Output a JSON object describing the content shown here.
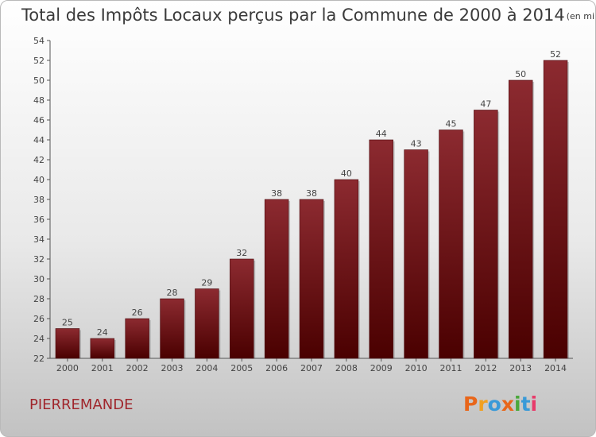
{
  "chart_data": {
    "type": "bar",
    "title": "Total des Impôts Locaux perçus par la Commune de 2000 à 2014",
    "subtitle": "(en milliers d'€)",
    "categories": [
      "2000",
      "2001",
      "2002",
      "2003",
      "2004",
      "2005",
      "2006",
      "2007",
      "2008",
      "2009",
      "2010",
      "2011",
      "2012",
      "2013",
      "2014"
    ],
    "values": [
      25,
      24,
      26,
      28,
      29,
      32,
      38,
      38,
      40,
      44,
      43,
      45,
      47,
      50,
      52
    ],
    "xlabel": "",
    "ylabel": "",
    "ylim": [
      22,
      54
    ],
    "yticks": [
      22,
      24,
      26,
      28,
      30,
      32,
      34,
      36,
      38,
      40,
      42,
      44,
      46,
      48,
      50,
      52,
      54
    ],
    "grid": false,
    "bar_color": "#7a1a20"
  },
  "footer": {
    "place": "PIERREMANDE",
    "logo": "Proxiti"
  },
  "logo_colors": [
    "#e8661a",
    "#f0a020",
    "#3a9ad8",
    "#e8661a",
    "#4aa83a",
    "#3a9ad8",
    "#e83a6a"
  ]
}
